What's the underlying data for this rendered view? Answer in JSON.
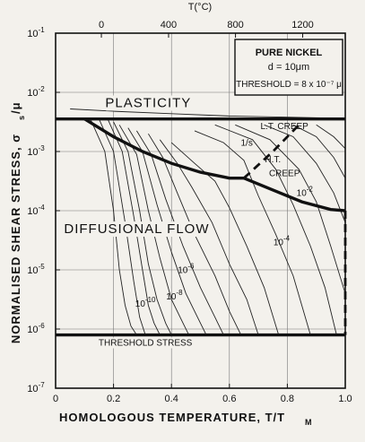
{
  "chart_data": {
    "type": "line",
    "title": "PURE NICKEL",
    "legend_box": [
      "PURE NICKEL",
      "d = 10μm",
      "THRESHOLD = 8 x 10⁻⁷ μ"
    ],
    "xlabel": "HOMOLOGOUS TEMPERATURE, T/T",
    "xlabel_sub": "M",
    "ylabel": "NORMALISED SHEAR STRESS, σ",
    "ylabel_sub": "s",
    "ylabel_suffix": "/μ",
    "x_top_label": "T(°C)",
    "xlim": [
      0,
      1.0
    ],
    "ylim_log10": [
      -7,
      -1
    ],
    "y_scale": "log",
    "grid": true,
    "x_ticks": [
      "0",
      "0.2",
      "0.4",
      "0.6",
      "0.8",
      "1.0"
    ],
    "x_tick_values": [
      0,
      0.2,
      0.4,
      0.6,
      0.8,
      1.0
    ],
    "x_top_ticks": [
      "0",
      "400",
      "800",
      "1200"
    ],
    "x_top_tick_values": [
      0.158,
      0.39,
      0.621,
      0.853
    ],
    "y_ticks": [
      {
        "exp": -1,
        "label": "10",
        "sup": "-1"
      },
      {
        "exp": -2,
        "label": "10",
        "sup": "-2"
      },
      {
        "exp": -3,
        "label": "10",
        "sup": "-3"
      },
      {
        "exp": -4,
        "label": "10",
        "sup": "-4"
      },
      {
        "exp": -5,
        "label": "10",
        "sup": "-5"
      },
      {
        "exp": -6,
        "label": "10",
        "sup": "-6"
      },
      {
        "exp": -7,
        "label": "10",
        "sup": "-7"
      }
    ],
    "regions": [
      {
        "text": "PLASTICITY",
        "x": 0.32,
        "log_y": -2.25
      },
      {
        "text": "L.T. CREEP",
        "x": 0.79,
        "log_y": -2.62
      },
      {
        "text": "H.T.",
        "x": 0.75,
        "log_y": -3.18
      },
      {
        "text": "CREEP",
        "x": 0.79,
        "log_y": -3.42
      },
      {
        "text": "DIFFUSIONAL FLOW",
        "x": 0.28,
        "log_y": -4.38
      },
      {
        "text": "THRESHOLD STRESS",
        "x": 0.31,
        "log_y": -6.28
      }
    ],
    "rate_labels": [
      {
        "text": "1/s",
        "x": 0.66,
        "log_y": -2.9
      },
      {
        "text": "10",
        "sup": "-2",
        "x": 0.86,
        "log_y": -3.75
      },
      {
        "text": "10",
        "sup": "-4",
        "x": 0.78,
        "log_y": -4.58
      },
      {
        "text": "10",
        "sup": "-6",
        "x": 0.45,
        "log_y": -5.05
      },
      {
        "text": "10",
        "sup": "-8",
        "x": 0.41,
        "log_y": -5.5
      },
      {
        "text": "10",
        "sup": "-10",
        "x": 0.31,
        "log_y": -5.62
      }
    ],
    "boundaries": [
      {
        "name": "yield",
        "style": "thick",
        "x": [
          0,
          1.0
        ],
        "log_y": [
          -2.45,
          -2.45
        ]
      },
      {
        "name": "threshold",
        "style": "thick",
        "x": [
          0,
          1.0
        ],
        "log_y": [
          -6.1,
          -6.1
        ]
      },
      {
        "name": "lt-ht-creep",
        "style": "thick",
        "x": [
          0.1,
          0.2,
          0.3,
          0.4,
          0.5,
          0.6,
          0.65
        ],
        "log_y": [
          -2.45,
          -2.75,
          -3.0,
          -3.2,
          -3.35,
          -3.45,
          -3.45
        ]
      },
      {
        "name": "ht-creep-diffusional",
        "style": "thick",
        "x": [
          0.65,
          0.75,
          0.85,
          0.95,
          1.0
        ],
        "log_y": [
          -3.45,
          -3.65,
          -3.85,
          -3.98,
          -4.0
        ]
      },
      {
        "name": "lt-creep-dashed",
        "style": "dashed",
        "x": [
          0.65,
          0.75,
          0.85
        ],
        "log_y": [
          -3.45,
          -3.0,
          -2.5
        ]
      },
      {
        "name": "melting-dashed",
        "style": "dashed",
        "x": [
          1.0,
          1.0
        ],
        "log_y": [
          -4.0,
          -6.1
        ]
      }
    ],
    "series": [
      {
        "x": [
          0.12,
          0.17,
          0.2,
          0.22,
          0.24,
          0.26,
          0.28
        ],
        "log_y": [
          -2.45,
          -3.0,
          -4.0,
          -5.0,
          -5.6,
          -5.95,
          -6.1
        ]
      },
      {
        "x": [
          0.15,
          0.2,
          0.24,
          0.27,
          0.29,
          0.31
        ],
        "log_y": [
          -2.45,
          -3.0,
          -4.2,
          -5.2,
          -5.8,
          -6.1
        ]
      },
      {
        "x": [
          0.18,
          0.23,
          0.27,
          0.3,
          0.32,
          0.34,
          0.36
        ],
        "log_y": [
          -2.45,
          -3.0,
          -4.1,
          -5.0,
          -5.6,
          -5.9,
          -6.1
        ]
      },
      {
        "x": [
          0.2,
          0.25,
          0.29,
          0.32,
          0.35,
          0.38,
          0.4
        ],
        "log_y": [
          -2.5,
          -3.0,
          -4.0,
          -4.9,
          -5.5,
          -5.9,
          -6.1
        ]
      },
      {
        "x": [
          0.22,
          0.28,
          0.32,
          0.36,
          0.4,
          0.44,
          0.46
        ],
        "log_y": [
          -2.55,
          -3.05,
          -4.0,
          -4.8,
          -5.5,
          -5.9,
          -6.1
        ]
      },
      {
        "x": [
          0.25,
          0.3,
          0.35,
          0.4,
          0.45,
          0.5,
          0.52
        ],
        "log_y": [
          -2.6,
          -3.0,
          -3.9,
          -4.7,
          -5.4,
          -5.9,
          -6.1
        ]
      },
      {
        "x": [
          0.28,
          0.33,
          0.38,
          0.44,
          0.5,
          0.55,
          0.58
        ],
        "log_y": [
          -2.65,
          -3.05,
          -3.8,
          -4.6,
          -5.3,
          -5.8,
          -6.1
        ]
      },
      {
        "x": [
          0.32,
          0.37,
          0.42,
          0.48,
          0.55,
          0.6,
          0.64
        ],
        "log_y": [
          -2.7,
          -3.1,
          -3.7,
          -4.4,
          -5.1,
          -5.7,
          -6.1
        ]
      },
      {
        "x": [
          0.36,
          0.42,
          0.47,
          0.54,
          0.6,
          0.66,
          0.7
        ],
        "log_y": [
          -2.8,
          -3.2,
          -3.6,
          -4.2,
          -4.9,
          -5.5,
          -6.1
        ]
      },
      {
        "x": [
          0.4,
          0.48,
          0.55,
          0.6,
          0.66,
          0.72,
          0.77
        ],
        "log_y": [
          -2.85,
          -3.2,
          -3.5,
          -3.95,
          -4.6,
          -5.3,
          -6.1
        ]
      },
      {
        "x": [
          0.48,
          0.58,
          0.65,
          0.7,
          0.76,
          0.82,
          0.88
        ],
        "log_y": [
          -2.65,
          -2.85,
          -3.15,
          -3.75,
          -4.4,
          -5.1,
          -6.1
        ]
      },
      {
        "x": [
          0.55,
          0.68,
          0.76,
          0.82,
          0.88,
          0.93,
          0.97
        ],
        "log_y": [
          -2.55,
          -2.8,
          -3.3,
          -3.9,
          -4.6,
          -5.3,
          -6.1
        ]
      },
      {
        "x": [
          0.62,
          0.74,
          0.84,
          0.9,
          0.95,
          1.0
        ],
        "log_y": [
          -2.55,
          -2.8,
          -3.3,
          -3.85,
          -4.6,
          -5.4
        ]
      },
      {
        "x": [
          0.72,
          0.82,
          0.9,
          0.96,
          1.0
        ],
        "log_y": [
          -2.55,
          -2.75,
          -3.2,
          -3.7,
          -4.2
        ]
      },
      {
        "x": [
          0.82,
          0.9,
          0.96,
          1.0
        ],
        "log_y": [
          -2.55,
          -2.75,
          -3.1,
          -3.45
        ]
      },
      {
        "x": [
          0.9,
          0.96,
          1.0
        ],
        "log_y": [
          -2.55,
          -2.75,
          -2.95
        ]
      },
      {
        "x": [
          0.05,
          0.2,
          0.4,
          0.6,
          0.8,
          1.0
        ],
        "log_y": [
          -2.28,
          -2.32,
          -2.36,
          -2.4,
          -2.42,
          -2.44
        ]
      }
    ]
  }
}
